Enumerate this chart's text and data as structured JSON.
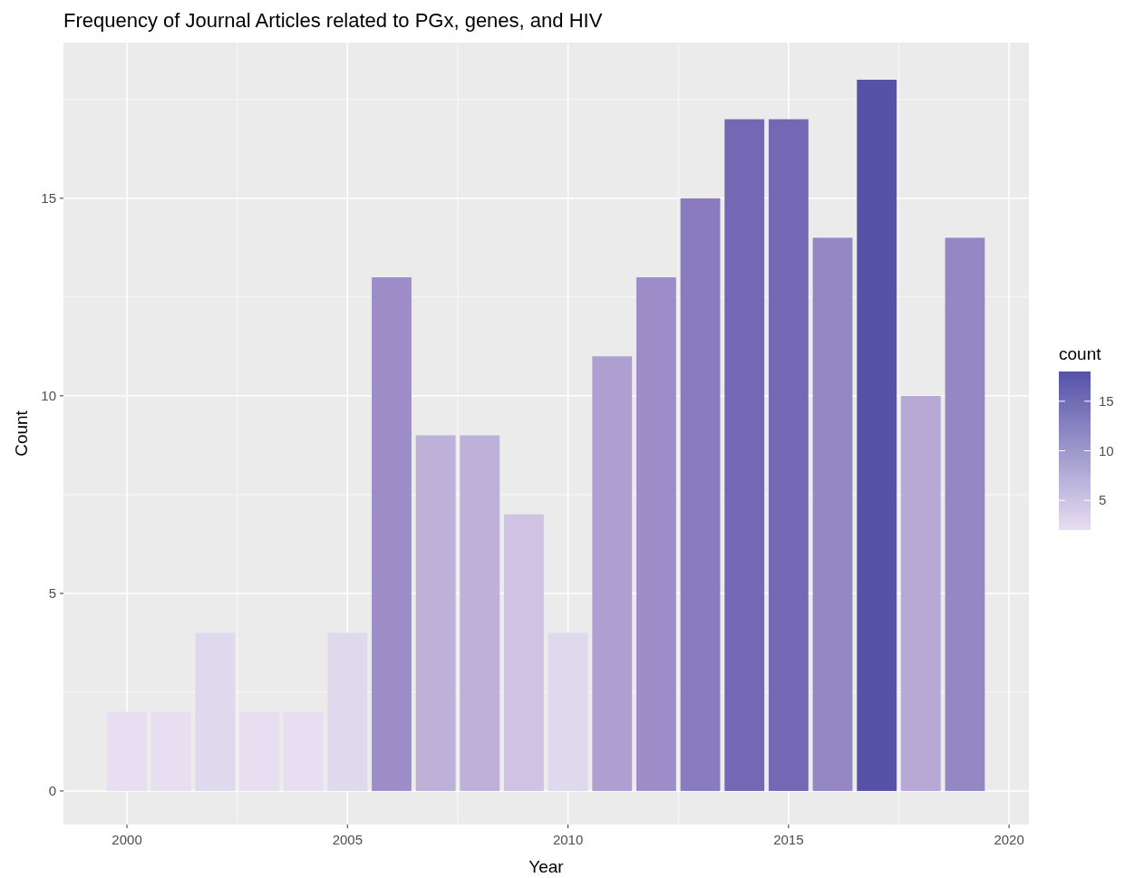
{
  "chart_data": {
    "type": "bar",
    "title": "Frequency of Journal Articles related to PGx, genes, and HIV",
    "xlabel": "Year",
    "ylabel": "Count",
    "clabel": "count",
    "x": [
      2000,
      2001,
      2002,
      2003,
      2004,
      2005,
      2006,
      2007,
      2008,
      2009,
      2010,
      2011,
      2012,
      2013,
      2014,
      2015,
      2016,
      2017,
      2018,
      2019
    ],
    "values": [
      2,
      2,
      4,
      2,
      2,
      4,
      13,
      9,
      9,
      7,
      4,
      11,
      13,
      15,
      17,
      17,
      14,
      18,
      10,
      14
    ],
    "colors": [
      "#e7def1",
      "#e7def1",
      "#e0d8ec",
      "#e7def1",
      "#e7def1",
      "#e0d8ec",
      "#9c8cc7",
      "#bdb1d9",
      "#bdb1d9",
      "#cfc2e2",
      "#e0d8ec",
      "#ae9fd1",
      "#9c8cc7",
      "#8a7bbf",
      "#7467b3",
      "#7467b3",
      "#9586c4",
      "#5552a8",
      "#b7a8d6",
      "#9586c4"
    ],
    "xlim": [
      1998.56,
      2020.45
    ],
    "xticks": [
      2000,
      2005,
      2010,
      2015,
      2020
    ],
    "ylim": [
      -0.85,
      18.94
    ],
    "yticks": [
      0,
      5,
      10,
      15
    ],
    "clim": [
      2,
      18
    ],
    "cticks": [
      5,
      10,
      15
    ],
    "grid": true
  }
}
